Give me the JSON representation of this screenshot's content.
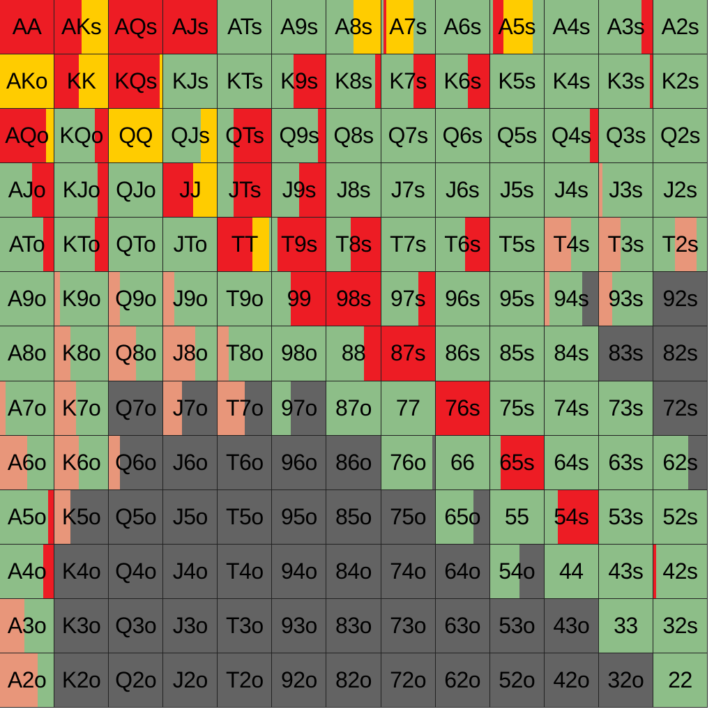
{
  "colors": {
    "raise": "#ED1C24",
    "allin": "#FFCC00",
    "call": "#8DBE88",
    "limp": "#E8967A",
    "fold": "#636363"
  },
  "legend_order": [
    "raise",
    "allin",
    "call",
    "limp",
    "fold"
  ],
  "grid": [
    [
      {
        "label": "AA",
        "mix": {
          "raise": 1
        }
      },
      {
        "label": "AKs",
        "mix": {
          "raise": 0.5,
          "allin": 0.5
        }
      },
      {
        "label": "AQs",
        "mix": {
          "raise": 1
        }
      },
      {
        "label": "AJs",
        "mix": {
          "raise": 1
        }
      },
      {
        "label": "ATs",
        "mix": {
          "call": 1
        }
      },
      {
        "label": "A9s",
        "mix": {
          "call": 1
        }
      },
      {
        "label": "A8s",
        "mix": {
          "call": 0.5,
          "allin": 0.5
        }
      },
      {
        "label": "A7s",
        "mix": {
          "call": 0.05,
          "raise": 0.05,
          "allin": 0.5,
          "call2": 0.4
        }
      },
      {
        "label": "A6s",
        "mix": {
          "call": 1
        }
      },
      {
        "label": "A5s",
        "mix": {
          "call": 0.05,
          "raise": 0.2,
          "allin": 0.55,
          "call2": 0.2
        }
      },
      {
        "label": "A4s",
        "mix": {
          "call": 1
        }
      },
      {
        "label": "A3s",
        "mix": {
          "call": 0.8,
          "raise": 0.2
        }
      },
      {
        "label": "A2s",
        "mix": {
          "call": 1
        }
      }
    ],
    [
      {
        "label": "AKo",
        "mix": {
          "allin": 1
        }
      },
      {
        "label": "KK",
        "mix": {
          "raise": 0.45,
          "allin": 0.55
        }
      },
      {
        "label": "KQs",
        "mix": {
          "raise": 0.95,
          "allin": 0.05
        }
      },
      {
        "label": "KJs",
        "mix": {
          "call": 1
        }
      },
      {
        "label": "KTs",
        "mix": {
          "call": 1
        }
      },
      {
        "label": "K9s",
        "mix": {
          "call": 0.4,
          "raise": 0.6
        }
      },
      {
        "label": "K8s",
        "mix": {
          "call": 0.9,
          "raise": 0.1
        }
      },
      {
        "label": "K7s",
        "mix": {
          "call": 0.6,
          "raise": 0.4
        }
      },
      {
        "label": "K6s",
        "mix": {
          "call": 0.6,
          "raise": 0.4
        }
      },
      {
        "label": "K5s",
        "mix": {
          "call": 1
        }
      },
      {
        "label": "K4s",
        "mix": {
          "call": 1
        }
      },
      {
        "label": "K3s",
        "mix": {
          "call": 0.95,
          "raise": 0.05
        }
      },
      {
        "label": "K2s",
        "mix": {
          "call": 1
        }
      }
    ],
    [
      {
        "label": "AQo",
        "mix": {
          "raise": 0.85,
          "allin": 0.15
        }
      },
      {
        "label": "KQo",
        "mix": {
          "call": 0.75,
          "raise": 0.25
        }
      },
      {
        "label": "QQ",
        "mix": {
          "allin": 1
        }
      },
      {
        "label": "QJs",
        "mix": {
          "call": 0.7,
          "allin": 0.3
        }
      },
      {
        "label": "QTs",
        "mix": {
          "call": 0.3,
          "raise": 0.7
        }
      },
      {
        "label": "Q9s",
        "mix": {
          "call": 0.85,
          "raise": 0.15
        }
      },
      {
        "label": "Q8s",
        "mix": {
          "call": 1
        }
      },
      {
        "label": "Q7s",
        "mix": {
          "call": 1
        }
      },
      {
        "label": "Q6s",
        "mix": {
          "call": 1
        }
      },
      {
        "label": "Q5s",
        "mix": {
          "call": 1
        }
      },
      {
        "label": "Q4s",
        "mix": {
          "call": 0.85,
          "raise": 0.15
        }
      },
      {
        "label": "Q3s",
        "mix": {
          "call": 1
        }
      },
      {
        "label": "Q2s",
        "mix": {
          "call": 1
        }
      }
    ],
    [
      {
        "label": "AJo",
        "mix": {
          "call": 0.6,
          "raise": 0.4
        }
      },
      {
        "label": "KJo",
        "mix": {
          "call": 0.8,
          "raise": 0.2
        }
      },
      {
        "label": "QJo",
        "mix": {
          "call": 1
        }
      },
      {
        "label": "JJ",
        "mix": {
          "raise": 0.55,
          "allin": 0.45
        }
      },
      {
        "label": "JTs",
        "mix": {
          "call": 0.3,
          "raise": 0.7
        }
      },
      {
        "label": "J9s",
        "mix": {
          "call": 0.5,
          "raise": 0.5
        }
      },
      {
        "label": "J8s",
        "mix": {
          "call": 1
        }
      },
      {
        "label": "J7s",
        "mix": {
          "call": 1
        }
      },
      {
        "label": "J6s",
        "mix": {
          "call": 1
        }
      },
      {
        "label": "J5s",
        "mix": {
          "call": 1
        }
      },
      {
        "label": "J4s",
        "mix": {
          "call": 1
        }
      },
      {
        "label": "J3s",
        "mix": {
          "limp": 0.07,
          "call": 0.93
        }
      },
      {
        "label": "J2s",
        "mix": {
          "call": 1
        }
      }
    ],
    [
      {
        "label": "ATo",
        "mix": {
          "call": 0.8,
          "raise": 0.2
        }
      },
      {
        "label": "KTo",
        "mix": {
          "call": 0.75,
          "raise": 0.25
        }
      },
      {
        "label": "QTo",
        "mix": {
          "call": 1
        }
      },
      {
        "label": "JTo",
        "mix": {
          "call": 1
        }
      },
      {
        "label": "TT",
        "mix": {
          "raise": 0.65,
          "allin": 0.3,
          "call": 0.05
        }
      },
      {
        "label": "T9s",
        "mix": {
          "call": 0.1,
          "raise": 0.9
        }
      },
      {
        "label": "T8s",
        "mix": {
          "call": 0.45,
          "raise": 0.55
        }
      },
      {
        "label": "T7s",
        "mix": {
          "call": 1
        }
      },
      {
        "label": "T6s",
        "mix": {
          "call": 0.55,
          "raise": 0.45
        }
      },
      {
        "label": "T5s",
        "mix": {
          "call": 1
        }
      },
      {
        "label": "T4s",
        "mix": {
          "limp": 0.5,
          "call": 0.5
        }
      },
      {
        "label": "T3s",
        "mix": {
          "limp": 0.4,
          "call": 0.6
        }
      },
      {
        "label": "T2s",
        "mix": {
          "call": 0.4,
          "limp": 0.4,
          "call2": 0.2
        }
      }
    ],
    [
      {
        "label": "A9o",
        "mix": {
          "call": 1
        }
      },
      {
        "label": "K9o",
        "mix": {
          "limp": 0.1,
          "call": 0.9
        }
      },
      {
        "label": "Q9o",
        "mix": {
          "limp": 0.2,
          "call": 0.8
        }
      },
      {
        "label": "J9o",
        "mix": {
          "limp": 0.2,
          "call": 0.8
        }
      },
      {
        "label": "T9o",
        "mix": {
          "call": 1
        }
      },
      {
        "label": "99",
        "mix": {
          "call": 0.35,
          "raise": 0.65
        }
      },
      {
        "label": "98s",
        "mix": {
          "raise": 1
        }
      },
      {
        "label": "97s",
        "mix": {
          "call": 0.7,
          "raise": 0.3
        }
      },
      {
        "label": "96s",
        "mix": {
          "call": 1
        }
      },
      {
        "label": "95s",
        "mix": {
          "call": 1
        }
      },
      {
        "label": "94s",
        "mix": {
          "limp": 0.1,
          "call": 0.6,
          "fold": 0.3
        }
      },
      {
        "label": "93s",
        "mix": {
          "limp": 0.25,
          "call": 0.75
        }
      },
      {
        "label": "92s",
        "mix": {
          "fold": 1
        }
      }
    ],
    [
      {
        "label": "A8o",
        "mix": {
          "call": 1
        }
      },
      {
        "label": "K8o",
        "mix": {
          "limp": 0.3,
          "call": 0.7
        }
      },
      {
        "label": "Q8o",
        "mix": {
          "limp": 0.5,
          "call": 0.5
        }
      },
      {
        "label": "J8o",
        "mix": {
          "limp": 0.6,
          "call": 0.4
        }
      },
      {
        "label": "T8o",
        "mix": {
          "limp": 0.2,
          "call": 0.8
        }
      },
      {
        "label": "98o",
        "mix": {
          "call": 1
        }
      },
      {
        "label": "88",
        "mix": {
          "call": 0.7,
          "raise": 0.3
        }
      },
      {
        "label": "87s",
        "mix": {
          "raise": 1
        }
      },
      {
        "label": "86s",
        "mix": {
          "call": 1
        }
      },
      {
        "label": "85s",
        "mix": {
          "call": 1
        }
      },
      {
        "label": "84s",
        "mix": {
          "call": 1
        }
      },
      {
        "label": "83s",
        "mix": {
          "fold": 1
        }
      },
      {
        "label": "82s",
        "mix": {
          "fold": 1
        }
      }
    ],
    [
      {
        "label": "A7o",
        "mix": {
          "limp": 0.1,
          "call": 0.9
        }
      },
      {
        "label": "K7o",
        "mix": {
          "limp": 0.4,
          "call": 0.6
        }
      },
      {
        "label": "Q7o",
        "mix": {
          "fold": 1
        }
      },
      {
        "label": "J7o",
        "mix": {
          "limp": 0.35,
          "fold": 0.65
        }
      },
      {
        "label": "T7o",
        "mix": {
          "limp": 0.5,
          "fold": 0.5
        }
      },
      {
        "label": "97o",
        "mix": {
          "call": 0.35,
          "fold": 0.65
        }
      },
      {
        "label": "87o",
        "mix": {
          "call": 1
        }
      },
      {
        "label": "77",
        "mix": {
          "call": 1
        }
      },
      {
        "label": "76s",
        "mix": {
          "raise": 1
        }
      },
      {
        "label": "75s",
        "mix": {
          "call": 1
        }
      },
      {
        "label": "74s",
        "mix": {
          "call": 1
        }
      },
      {
        "label": "73s",
        "mix": {
          "call": 1
        }
      },
      {
        "label": "72s",
        "mix": {
          "fold": 1
        }
      }
    ],
    [
      {
        "label": "A6o",
        "mix": {
          "limp": 0.5,
          "call": 0.5
        }
      },
      {
        "label": "K6o",
        "mix": {
          "limp": 0.45,
          "call": 0.55
        }
      },
      {
        "label": "Q6o",
        "mix": {
          "limp": 0.2,
          "fold": 0.8
        }
      },
      {
        "label": "J6o",
        "mix": {
          "fold": 1
        }
      },
      {
        "label": "T6o",
        "mix": {
          "fold": 1
        }
      },
      {
        "label": "96o",
        "mix": {
          "fold": 1
        }
      },
      {
        "label": "86o",
        "mix": {
          "fold": 1
        }
      },
      {
        "label": "76o",
        "mix": {
          "call": 0.95,
          "fold": 0.05
        }
      },
      {
        "label": "66",
        "mix": {
          "call": 1
        }
      },
      {
        "label": "65s",
        "mix": {
          "call": 0.2,
          "raise": 0.8
        }
      },
      {
        "label": "64s",
        "mix": {
          "call": 1
        }
      },
      {
        "label": "63s",
        "mix": {
          "call": 1
        }
      },
      {
        "label": "62s",
        "mix": {
          "call": 0.65,
          "fold": 0.35
        }
      }
    ],
    [
      {
        "label": "A5o",
        "mix": {
          "call": 0.9,
          "raise": 0.1
        }
      },
      {
        "label": "K5o",
        "mix": {
          "limp": 0.3,
          "fold": 0.7
        }
      },
      {
        "label": "Q5o",
        "mix": {
          "fold": 1
        }
      },
      {
        "label": "J5o",
        "mix": {
          "fold": 1
        }
      },
      {
        "label": "T5o",
        "mix": {
          "fold": 1
        }
      },
      {
        "label": "95o",
        "mix": {
          "fold": 1
        }
      },
      {
        "label": "85o",
        "mix": {
          "fold": 1
        }
      },
      {
        "label": "75o",
        "mix": {
          "fold": 1
        }
      },
      {
        "label": "65o",
        "mix": {
          "call": 0.7,
          "fold": 0.3
        }
      },
      {
        "label": "55",
        "mix": {
          "call": 1
        }
      },
      {
        "label": "54s",
        "mix": {
          "call": 0.25,
          "raise": 0.75
        }
      },
      {
        "label": "53s",
        "mix": {
          "call": 1
        }
      },
      {
        "label": "52s",
        "mix": {
          "call": 1
        }
      }
    ],
    [
      {
        "label": "A4o",
        "mix": {
          "call": 0.8,
          "raise": 0.2
        }
      },
      {
        "label": "K4o",
        "mix": {
          "fold": 1
        }
      },
      {
        "label": "Q4o",
        "mix": {
          "fold": 1
        }
      },
      {
        "label": "J4o",
        "mix": {
          "fold": 1
        }
      },
      {
        "label": "T4o",
        "mix": {
          "fold": 1
        }
      },
      {
        "label": "94o",
        "mix": {
          "fold": 1
        }
      },
      {
        "label": "84o",
        "mix": {
          "fold": 1
        }
      },
      {
        "label": "74o",
        "mix": {
          "fold": 1
        }
      },
      {
        "label": "64o",
        "mix": {
          "fold": 1
        }
      },
      {
        "label": "54o",
        "mix": {
          "call": 0.55,
          "fold": 0.45
        }
      },
      {
        "label": "44",
        "mix": {
          "call": 1
        }
      },
      {
        "label": "43s",
        "mix": {
          "call": 1
        }
      },
      {
        "label": "42s",
        "mix": {
          "raise": 0.05,
          "call": 0.95
        }
      }
    ],
    [
      {
        "label": "A3o",
        "mix": {
          "limp": 0.45,
          "call": 0.55
        }
      },
      {
        "label": "K3o",
        "mix": {
          "fold": 1
        }
      },
      {
        "label": "Q3o",
        "mix": {
          "fold": 1
        }
      },
      {
        "label": "J3o",
        "mix": {
          "fold": 1
        }
      },
      {
        "label": "T3o",
        "mix": {
          "fold": 1
        }
      },
      {
        "label": "93o",
        "mix": {
          "fold": 1
        }
      },
      {
        "label": "83o",
        "mix": {
          "fold": 1
        }
      },
      {
        "label": "73o",
        "mix": {
          "fold": 1
        }
      },
      {
        "label": "63o",
        "mix": {
          "fold": 1
        }
      },
      {
        "label": "53o",
        "mix": {
          "fold": 1
        }
      },
      {
        "label": "43o",
        "mix": {
          "fold": 1
        }
      },
      {
        "label": "33",
        "mix": {
          "call": 1
        }
      },
      {
        "label": "32s",
        "mix": {
          "call": 1
        }
      }
    ],
    [
      {
        "label": "A2o",
        "mix": {
          "limp": 0.7,
          "call": 0.3
        }
      },
      {
        "label": "K2o",
        "mix": {
          "fold": 1
        }
      },
      {
        "label": "Q2o",
        "mix": {
          "fold": 1
        }
      },
      {
        "label": "J2o",
        "mix": {
          "fold": 1
        }
      },
      {
        "label": "T2o",
        "mix": {
          "fold": 1
        }
      },
      {
        "label": "92o",
        "mix": {
          "fold": 1
        }
      },
      {
        "label": "82o",
        "mix": {
          "fold": 1
        }
      },
      {
        "label": "72o",
        "mix": {
          "fold": 1
        }
      },
      {
        "label": "62o",
        "mix": {
          "fold": 1
        }
      },
      {
        "label": "52o",
        "mix": {
          "fold": 1
        }
      },
      {
        "label": "42o",
        "mix": {
          "fold": 1
        }
      },
      {
        "label": "32o",
        "mix": {
          "fold": 1
        }
      },
      {
        "label": "22",
        "mix": {
          "call": 1
        }
      }
    ]
  ]
}
